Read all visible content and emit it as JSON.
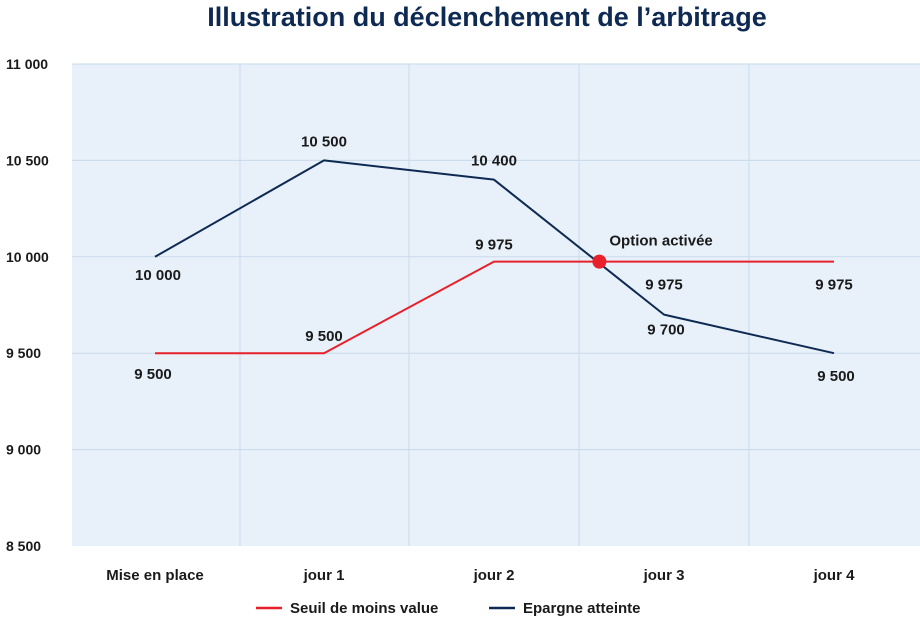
{
  "chart_data": {
    "type": "line",
    "title": "Illustration du déclenchement de l’arbitrage",
    "categories": [
      "Mise en place",
      "jour 1",
      "jour 2",
      "jour 3",
      "jour 4"
    ],
    "ylim": [
      8500,
      11000
    ],
    "yticks": [
      8500,
      9000,
      9500,
      10000,
      10500,
      11000
    ],
    "ytick_labels": [
      "8 500",
      "9 000",
      "9 500",
      "10 000",
      "10 500",
      "11 000"
    ],
    "grid": true,
    "legend_position": "bottom",
    "series": [
      {
        "name": "Seuil de moins value",
        "color": "#e8202a",
        "values": [
          9500,
          9500,
          9975,
          9975,
          9975
        ],
        "labels": [
          "9 500",
          "9 500",
          "9 975",
          "9 975",
          "9 975"
        ]
      },
      {
        "name": "Epargne atteinte",
        "color": "#0f2a52",
        "values": [
          10000,
          10500,
          10400,
          9700,
          9500
        ],
        "labels": [
          "10 000",
          "10 500",
          "10 400",
          "9 700",
          "9 500"
        ]
      }
    ],
    "annotation": {
      "text": "Option activée",
      "x_index": 2.62,
      "y": 9975,
      "color": "#e8202a"
    },
    "colors": {
      "plot_background": "#e8f1fa",
      "grid": "#c9d9e9"
    }
  }
}
